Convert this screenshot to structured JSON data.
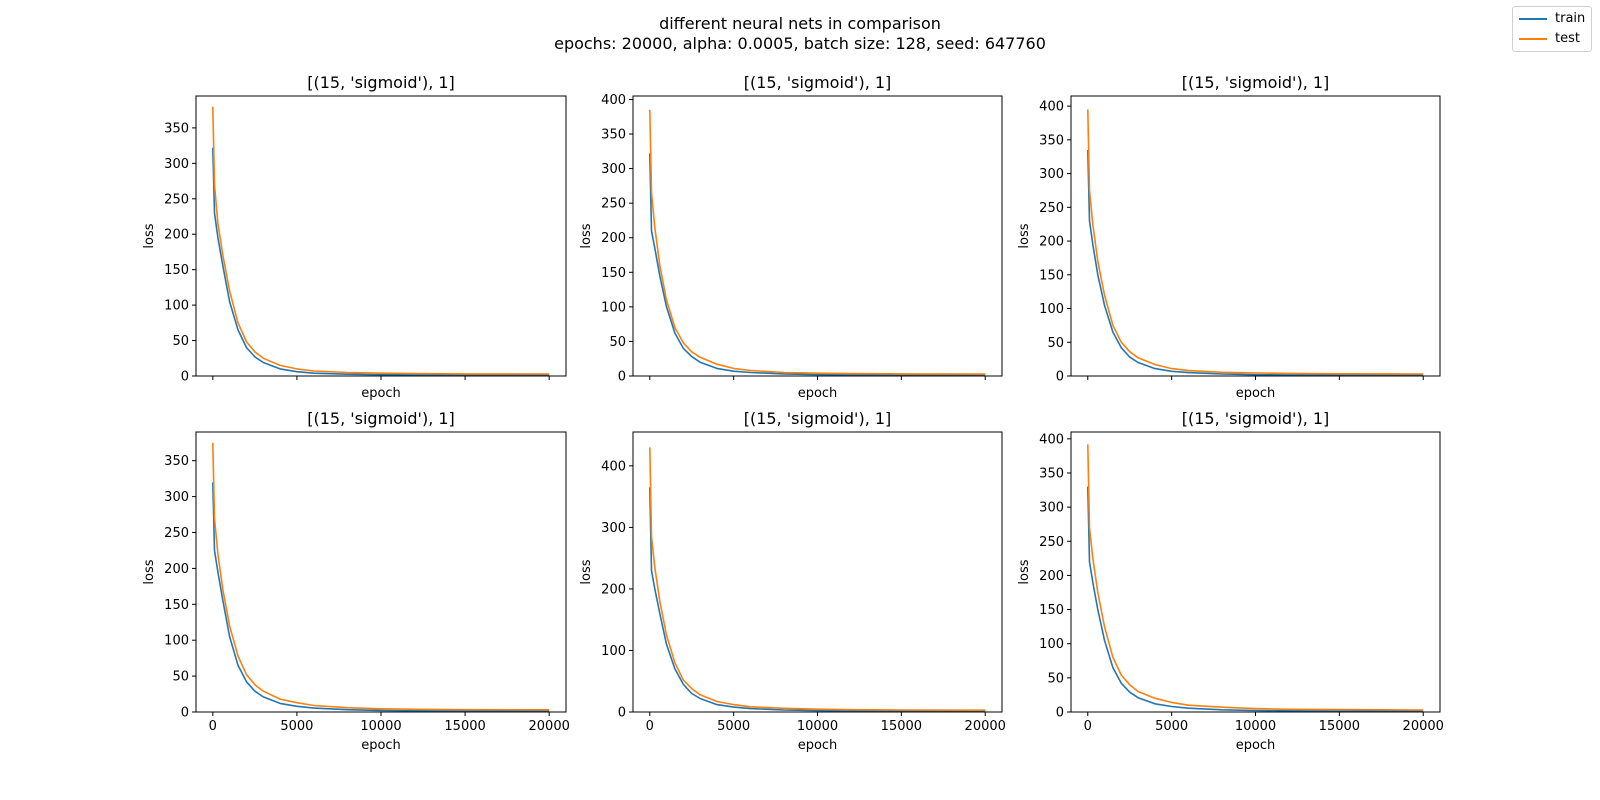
{
  "figure": {
    "title": "different neural nets in comparison",
    "subtitle": "epochs: 20000, alpha: 0.0005, batch size: 128, seed: 647760"
  },
  "legend": {
    "placement": "top-right",
    "items": [
      {
        "label": "train",
        "color": "#1f77b4"
      },
      {
        "label": "test",
        "color": "#ff7f0e"
      }
    ]
  },
  "chart_data": [
    {
      "type": "line",
      "title": "[(15, 'sigmoid'), 1]",
      "xlabel": "epoch",
      "ylabel": "loss",
      "xlim": [
        -1000,
        21000
      ],
      "ylim": [
        0,
        395
      ],
      "xticks": [
        0,
        5000,
        10000,
        15000,
        20000
      ],
      "xticklabels_visible": false,
      "yticks": [
        0,
        50,
        100,
        150,
        200,
        250,
        300,
        350
      ],
      "grid": false,
      "x": [
        0,
        100,
        300,
        600,
        1000,
        1500,
        2000,
        2500,
        3000,
        4000,
        5000,
        6000,
        8000,
        10000,
        12000,
        15000,
        20000
      ],
      "series": [
        {
          "name": "train",
          "values": [
            322,
            230,
            195,
            155,
            105,
            65,
            40,
            27,
            19,
            10,
            6,
            4,
            2.5,
            1.8,
            1.5,
            1.3,
            1.2
          ]
        },
        {
          "name": "test",
          "values": [
            380,
            270,
            215,
            170,
            120,
            75,
            48,
            34,
            25,
            15,
            10,
            7,
            5,
            4,
            3.5,
            3,
            2.8
          ]
        }
      ]
    },
    {
      "type": "line",
      "title": "[(15, 'sigmoid'), 1]",
      "xlabel": "epoch",
      "ylabel": "loss",
      "xlim": [
        -1000,
        21000
      ],
      "ylim": [
        0,
        405
      ],
      "xticks": [
        0,
        5000,
        10000,
        15000,
        20000
      ],
      "xticklabels_visible": false,
      "yticks": [
        0,
        50,
        100,
        150,
        200,
        250,
        300,
        350,
        400
      ],
      "grid": false,
      "x": [
        0,
        100,
        300,
        600,
        1000,
        1500,
        2000,
        2500,
        3000,
        4000,
        5000,
        6000,
        8000,
        10000,
        12000,
        15000,
        20000
      ],
      "series": [
        {
          "name": "train",
          "values": [
            322,
            210,
            185,
            145,
            100,
            62,
            40,
            28,
            20,
            11,
            7,
            5,
            3,
            2,
            1.6,
            1.3,
            1.2
          ]
        },
        {
          "name": "test",
          "values": [
            385,
            265,
            215,
            160,
            110,
            70,
            48,
            35,
            27,
            17,
            11,
            8,
            5,
            4,
            3.5,
            3,
            2.8
          ]
        }
      ]
    },
    {
      "type": "line",
      "title": "[(15, 'sigmoid'), 1]",
      "xlabel": "epoch",
      "ylabel": "loss",
      "xlim": [
        -1000,
        21000
      ],
      "ylim": [
        0,
        415
      ],
      "xticks": [
        0,
        5000,
        10000,
        15000,
        20000
      ],
      "xticklabels_visible": false,
      "yticks": [
        0,
        50,
        100,
        150,
        200,
        250,
        300,
        350,
        400
      ],
      "grid": false,
      "x": [
        0,
        100,
        300,
        600,
        1000,
        1500,
        2000,
        2500,
        3000,
        4000,
        5000,
        6000,
        8000,
        10000,
        12000,
        15000,
        20000
      ],
      "series": [
        {
          "name": "train",
          "values": [
            335,
            230,
            195,
            150,
            105,
            65,
            42,
            28,
            20,
            11,
            7,
            5,
            3,
            2,
            1.6,
            1.3,
            1.2
          ]
        },
        {
          "name": "test",
          "values": [
            395,
            275,
            225,
            170,
            120,
            75,
            50,
            36,
            27,
            17,
            11,
            8,
            5.5,
            4.5,
            3.8,
            3.2,
            3
          ]
        }
      ]
    },
    {
      "type": "line",
      "title": "[(15, 'sigmoid'), 1]",
      "xlabel": "epoch",
      "ylabel": "loss",
      "xlim": [
        -1000,
        21000
      ],
      "ylim": [
        0,
        390
      ],
      "xticks": [
        0,
        5000,
        10000,
        15000,
        20000
      ],
      "xticklabels_visible": true,
      "yticks": [
        0,
        50,
        100,
        150,
        200,
        250,
        300,
        350
      ],
      "grid": false,
      "x": [
        0,
        100,
        300,
        600,
        1000,
        1500,
        2000,
        2500,
        3000,
        4000,
        5000,
        6000,
        8000,
        10000,
        12000,
        15000,
        20000
      ],
      "series": [
        {
          "name": "train",
          "values": [
            320,
            225,
            195,
            155,
            105,
            65,
            42,
            29,
            21,
            12,
            8,
            5.5,
            3.2,
            2.2,
            1.7,
            1.4,
            1.2
          ]
        },
        {
          "name": "test",
          "values": [
            375,
            270,
            220,
            170,
            120,
            78,
            52,
            38,
            29,
            18,
            13,
            9,
            6,
            4.5,
            3.8,
            3.2,
            3
          ]
        }
      ]
    },
    {
      "type": "line",
      "title": "[(15, 'sigmoid'), 1]",
      "xlabel": "epoch",
      "ylabel": "loss",
      "xlim": [
        -1000,
        21000
      ],
      "ylim": [
        0,
        455
      ],
      "xticks": [
        0,
        5000,
        10000,
        15000,
        20000
      ],
      "xticklabels_visible": true,
      "yticks": [
        0,
        100,
        200,
        300,
        400
      ],
      "grid": false,
      "x": [
        0,
        100,
        300,
        600,
        1000,
        1500,
        2000,
        2500,
        3000,
        4000,
        5000,
        6000,
        8000,
        10000,
        12000,
        15000,
        20000
      ],
      "series": [
        {
          "name": "train",
          "values": [
            365,
            230,
            200,
            160,
            110,
            70,
            45,
            30,
            22,
            12,
            8,
            5.5,
            3.2,
            2.2,
            1.7,
            1.4,
            1.2
          ]
        },
        {
          "name": "test",
          "values": [
            430,
            285,
            235,
            180,
            125,
            80,
            52,
            38,
            28,
            17,
            12,
            8.5,
            6,
            4.5,
            3.8,
            3.2,
            3
          ]
        }
      ]
    },
    {
      "type": "line",
      "title": "[(15, 'sigmoid'), 1]",
      "xlabel": "epoch",
      "ylabel": "loss",
      "xlim": [
        -1000,
        21000
      ],
      "ylim": [
        0,
        410
      ],
      "xticks": [
        0,
        5000,
        10000,
        15000,
        20000
      ],
      "xticklabels_visible": true,
      "yticks": [
        0,
        50,
        100,
        150,
        200,
        250,
        300,
        350,
        400
      ],
      "grid": false,
      "x": [
        0,
        100,
        300,
        600,
        1000,
        1500,
        2000,
        2500,
        3000,
        4000,
        5000,
        6000,
        8000,
        10000,
        12000,
        15000,
        20000
      ],
      "series": [
        {
          "name": "train",
          "values": [
            330,
            220,
            190,
            150,
            105,
            65,
            42,
            29,
            21,
            12,
            8,
            5.5,
            3.2,
            2.2,
            1.7,
            1.4,
            1.2
          ]
        },
        {
          "name": "test",
          "values": [
            392,
            270,
            225,
            175,
            125,
            80,
            54,
            40,
            30,
            20,
            14,
            10,
            7,
            5,
            4,
            3.5,
            3
          ]
        }
      ]
    }
  ]
}
